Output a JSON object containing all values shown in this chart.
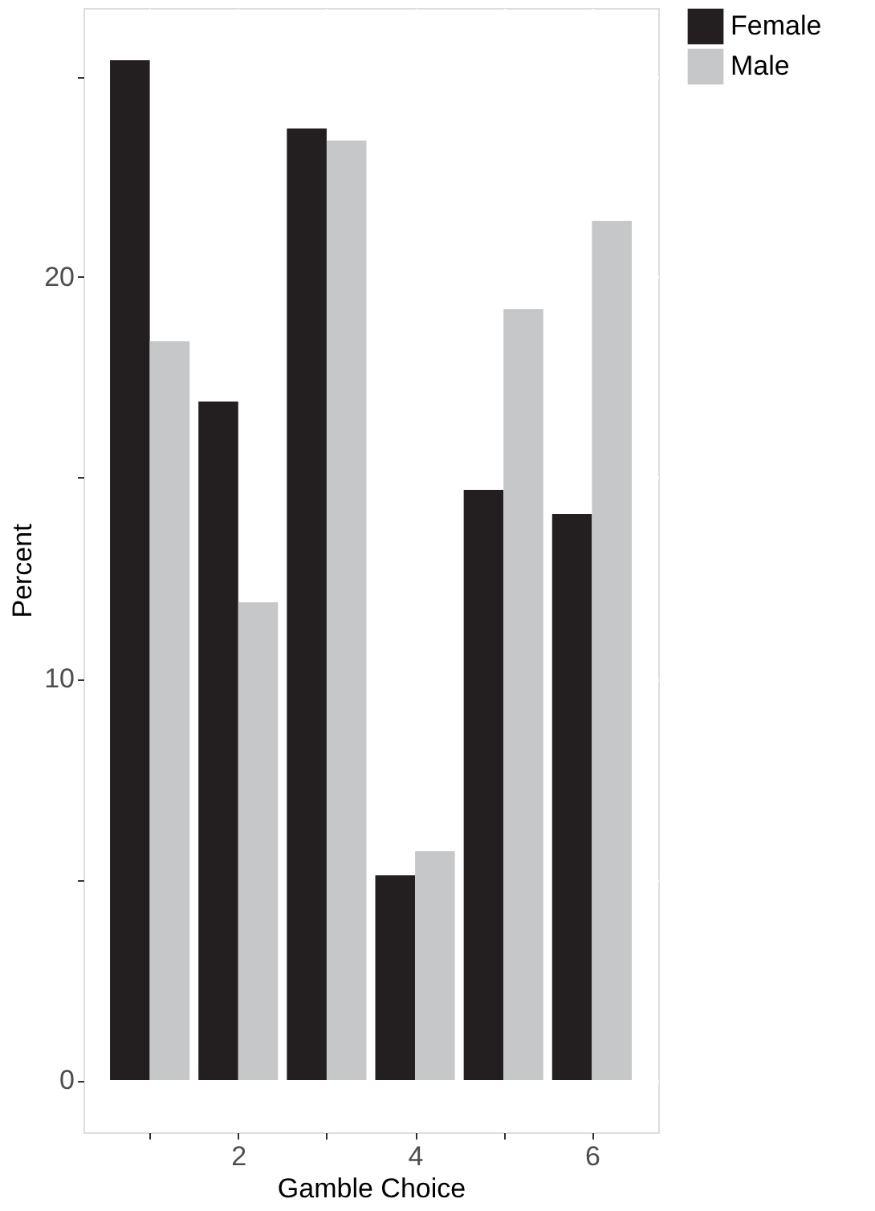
{
  "chart_data": {
    "type": "bar",
    "xlabel": "Gamble Choice",
    "ylabel": "Percent",
    "x": [
      1,
      2,
      3,
      4,
      5,
      6
    ],
    "series": [
      {
        "name": "Female",
        "color": "#231f20",
        "values": [
          25.4,
          16.9,
          23.7,
          5.1,
          14.7,
          14.1
        ]
      },
      {
        "name": "Male",
        "color": "#c6c7c9",
        "values": [
          18.4,
          11.9,
          23.4,
          5.7,
          19.2,
          21.4
        ]
      }
    ],
    "xlim": [
      0.25,
      6.75
    ],
    "ylim": [
      -1.3,
      26.7
    ],
    "xticks": [
      {
        "value": 1,
        "label": null
      },
      2,
      {
        "value": 3,
        "label": null
      },
      4,
      {
        "value": 5,
        "label": null
      },
      6
    ],
    "yticks": [
      0,
      {
        "value": 5,
        "label": null
      },
      10,
      {
        "value": 15,
        "label": null
      },
      20,
      {
        "value": 25,
        "label": null
      }
    ],
    "grid": true,
    "legend": "right"
  }
}
